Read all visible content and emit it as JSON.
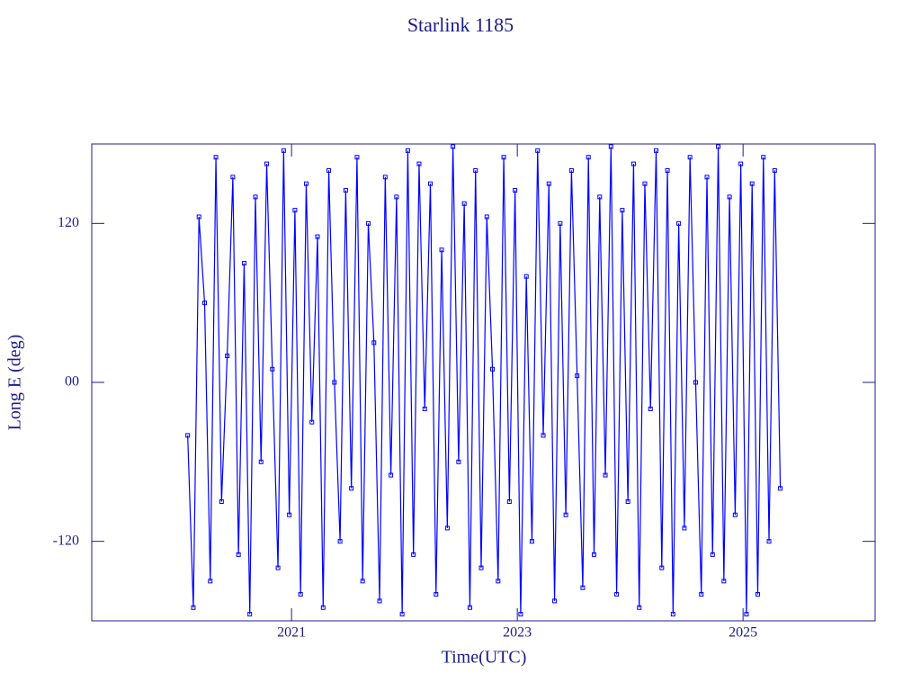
{
  "chart_data": {
    "type": "line",
    "title": "Starlink 1185",
    "x_label": "Time(UTC)",
    "y_label": "Long E (deg)",
    "xlim": [
      2019.23,
      2026.17
    ],
    "xticks": [
      2021,
      2023,
      2025
    ],
    "ylim": [
      -180,
      180
    ],
    "yticks": [
      120,
      {
        "value": 0,
        "label": "00"
      },
      -120
    ],
    "series": [
      {
        "color": "#0000ff",
        "x": [
          2020.08,
          2020.13,
          2020.18,
          2020.23,
          2020.28,
          2020.33,
          2020.38,
          2020.43,
          2020.48,
          2020.53,
          2020.58,
          2020.63,
          2020.68,
          2020.73,
          2020.78,
          2020.83,
          2020.88,
          2020.93,
          2020.98,
          2021.03,
          2021.08,
          2021.13,
          2021.18,
          2021.23,
          2021.28,
          2021.33,
          2021.38,
          2021.43,
          2021.48,
          2021.53,
          2021.58,
          2021.63,
          2021.68,
          2021.73,
          2021.78,
          2021.83,
          2021.88,
          2021.93,
          2021.98,
          2022.03,
          2022.08,
          2022.13,
          2022.18,
          2022.23,
          2022.28,
          2022.33,
          2022.38,
          2022.43,
          2022.48,
          2022.53,
          2022.58,
          2022.63,
          2022.68,
          2022.73,
          2022.78,
          2022.83,
          2022.88,
          2022.93,
          2022.98,
          2023.03,
          2023.08,
          2023.13,
          2023.18,
          2023.23,
          2023.28,
          2023.33,
          2023.38,
          2023.43,
          2023.48,
          2023.53,
          2023.58,
          2023.63,
          2023.68,
          2023.73,
          2023.78,
          2023.83,
          2023.88,
          2023.93,
          2023.98,
          2024.03,
          2024.08,
          2024.13,
          2024.18,
          2024.23,
          2024.28,
          2024.33,
          2024.38,
          2024.43,
          2024.48,
          2024.53,
          2024.58,
          2024.63,
          2024.68,
          2024.73,
          2024.78,
          2024.83,
          2024.88,
          2024.93,
          2024.98,
          2025.03,
          2025.08,
          2025.13,
          2025.18,
          2025.23,
          2025.28,
          2025.33
        ],
        "values": [
          -40,
          -170,
          125,
          60,
          -150,
          170,
          -90,
          20,
          155,
          -130,
          90,
          -175,
          140,
          -60,
          165,
          10,
          -140,
          175,
          -100,
          130,
          -160,
          150,
          -30,
          110,
          -170,
          160,
          0,
          -120,
          145,
          -80,
          170,
          -150,
          120,
          30,
          -165,
          155,
          -70,
          140,
          -175,
          175,
          -130,
          165,
          -20,
          150,
          -160,
          100,
          -110,
          178,
          -60,
          135,
          -170,
          160,
          -140,
          125,
          10,
          -150,
          170,
          -90,
          145,
          -175,
          80,
          -120,
          175,
          -40,
          150,
          -165,
          120,
          -100,
          160,
          5,
          -155,
          170,
          -130,
          140,
          -70,
          178,
          -160,
          130,
          -90,
          165,
          -170,
          150,
          -20,
          175,
          -140,
          160,
          -175,
          120,
          -110,
          170,
          0,
          -160,
          155,
          -130,
          178,
          -150,
          140,
          -100,
          165,
          -175,
          150,
          -160,
          170,
          -120,
          160,
          -80
        ]
      }
    ]
  }
}
